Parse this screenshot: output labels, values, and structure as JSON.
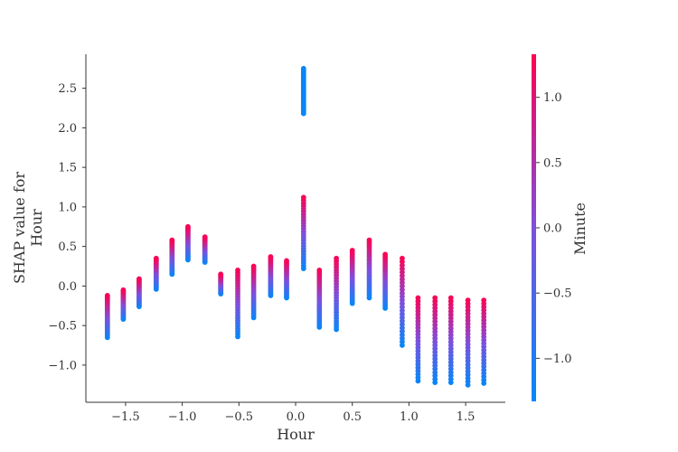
{
  "chart_data": {
    "type": "scatter",
    "xlabel": "Hour",
    "ylabel_lines": [
      "SHAP value for",
      "Hour"
    ],
    "xlim": [
      -1.85,
      1.85
    ],
    "ylim": [
      -1.47,
      2.93
    ],
    "xticks": [
      -1.5,
      -1.0,
      -0.5,
      0.0,
      0.5,
      1.0,
      1.5
    ],
    "xtick_labels": [
      "−1.5",
      "−1.0",
      "−0.5",
      "0.0",
      "0.5",
      "1.0",
      "1.5"
    ],
    "yticks": [
      -1.0,
      -0.5,
      0.0,
      0.5,
      1.0,
      1.5,
      2.0,
      2.5
    ],
    "ytick_labels": [
      "−1.0",
      "−0.5",
      "0.0",
      "0.5",
      "1.0",
      "1.5",
      "2.0",
      "2.5"
    ],
    "colorbar": {
      "label": "Minute",
      "range": [
        -1.33,
        1.33
      ],
      "ticks": [
        -1.0,
        -0.5,
        0.0,
        0.5,
        1.0
      ],
      "tick_labels": [
        "−1.0",
        "−0.5",
        "0.0",
        "0.5",
        "1.0"
      ],
      "colors": [
        "#008afb",
        "#7e4fdd",
        "#ff0051"
      ]
    },
    "columns": [
      {
        "x": -1.66,
        "low": -0.65,
        "high": -0.12,
        "low_value": -1.25,
        "high_value": 1.25
      },
      {
        "x": -1.52,
        "low": -0.42,
        "high": -0.05,
        "low_value": -1.25,
        "high_value": 1.25
      },
      {
        "x": -1.38,
        "low": -0.26,
        "high": 0.09,
        "low_value": -1.25,
        "high_value": 1.25
      },
      {
        "x": -1.23,
        "low": -0.04,
        "high": 0.35,
        "low_value": -1.25,
        "high_value": 1.25
      },
      {
        "x": -1.09,
        "low": 0.15,
        "high": 0.58,
        "low_value": -1.25,
        "high_value": 1.25
      },
      {
        "x": -0.95,
        "low": 0.33,
        "high": 0.75,
        "low_value": -1.25,
        "high_value": 1.25
      },
      {
        "x": -0.8,
        "low": 0.3,
        "high": 0.62,
        "low_value": -1.25,
        "high_value": 1.25
      },
      {
        "x": -0.66,
        "low": -0.1,
        "high": 0.15,
        "low_value": -1.25,
        "high_value": 1.25
      },
      {
        "x": -0.51,
        "low": -0.64,
        "high": 0.2,
        "low_value": -1.25,
        "high_value": 1.25
      },
      {
        "x": -0.37,
        "low": -0.4,
        "high": 0.25,
        "low_value": -1.25,
        "high_value": 1.25
      },
      {
        "x": -0.22,
        "low": -0.12,
        "high": 0.37,
        "low_value": -1.25,
        "high_value": 1.25
      },
      {
        "x": -0.08,
        "low": -0.15,
        "high": 0.32,
        "low_value": -1.25,
        "high_value": 1.25
      },
      {
        "x": 0.07,
        "low": 0.22,
        "high": 1.12,
        "low_value": -1.25,
        "high_value": 1.25
      },
      {
        "x": 0.21,
        "low": -0.52,
        "high": 0.2,
        "low_value": -1.25,
        "high_value": 1.25
      },
      {
        "x": 0.36,
        "low": -0.55,
        "high": 0.35,
        "low_value": -1.25,
        "high_value": 1.25
      },
      {
        "x": 0.5,
        "low": -0.22,
        "high": 0.45,
        "low_value": -1.25,
        "high_value": 1.25
      },
      {
        "x": 0.65,
        "low": -0.15,
        "high": 0.58,
        "low_value": -1.25,
        "high_value": 1.25
      },
      {
        "x": 0.79,
        "low": -0.28,
        "high": 0.4,
        "low_value": -1.25,
        "high_value": 1.25
      },
      {
        "x": 0.94,
        "low": -0.75,
        "high": 0.35,
        "low_value": -1.25,
        "high_value": 1.25
      },
      {
        "x": 1.08,
        "low": -1.2,
        "high": -0.15,
        "low_value": -1.25,
        "high_value": 1.25
      },
      {
        "x": 1.23,
        "low": -1.22,
        "high": -0.15,
        "low_value": -1.25,
        "high_value": 1.25
      },
      {
        "x": 1.37,
        "low": -1.22,
        "high": -0.15,
        "low_value": -1.25,
        "high_value": 1.25
      },
      {
        "x": 1.52,
        "low": -1.25,
        "high": -0.18,
        "low_value": -1.25,
        "high_value": 1.25
      },
      {
        "x": 1.66,
        "low": -1.23,
        "high": -0.18,
        "low_value": -1.25,
        "high_value": 1.25
      }
    ],
    "outliers": [
      {
        "x": 0.07,
        "low": 2.18,
        "high": 2.75,
        "value": -1.25
      }
    ]
  }
}
